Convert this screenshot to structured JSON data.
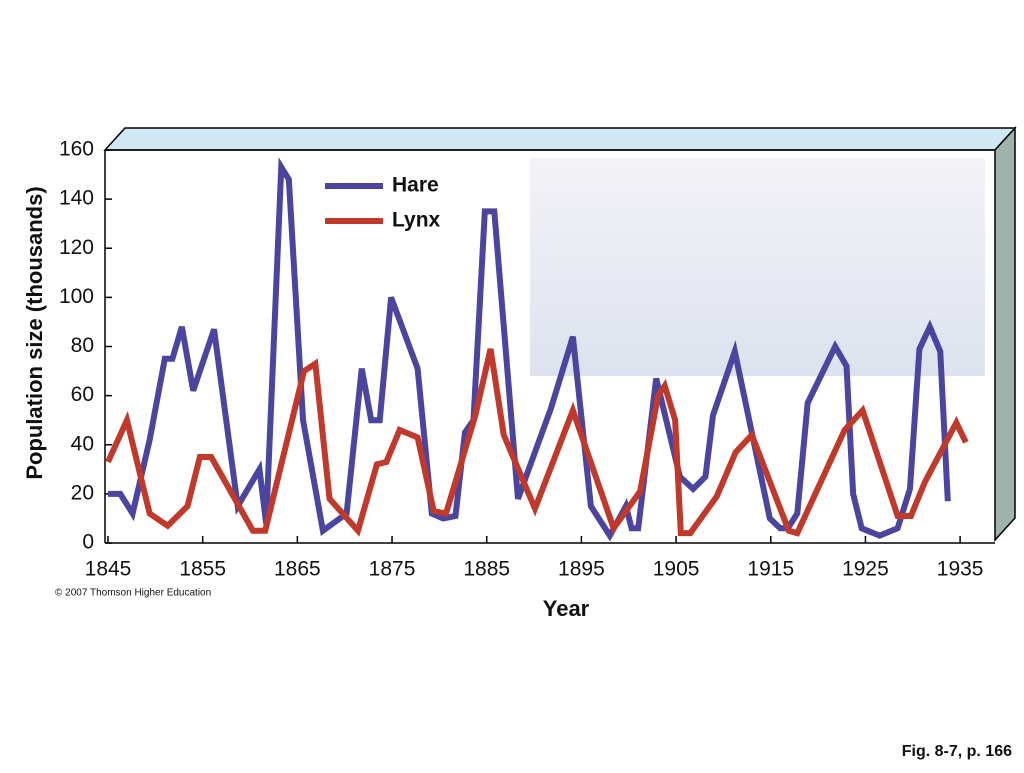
{
  "chart_data": {
    "type": "line",
    "x_label": "Year",
    "y_label": "Population size (thousands)",
    "footnote": "© 2007 Thomson Higher Education",
    "caption": "Fig. 8-7, p. 166",
    "xlim": [
      1845,
      1939
    ],
    "ylim": [
      0,
      160
    ],
    "xticks": [
      1845,
      1855,
      1865,
      1875,
      1885,
      1895,
      1905,
      1915,
      1925,
      1935
    ],
    "yticks": [
      0,
      20,
      40,
      60,
      80,
      100,
      120,
      140,
      160
    ],
    "legend": "upper-left",
    "series": [
      {
        "name": "Hare",
        "color": "#4b45a0",
        "x": [
          1845,
          1846.3,
          1847.6,
          1849.4,
          1851,
          1851.8,
          1852.8,
          1854,
          1856.2,
          1858.7,
          1861,
          1861.7,
          1863.3,
          1864.1,
          1865.6,
          1867.7,
          1870.2,
          1871.8,
          1872.8,
          1873.7,
          1874.9,
          1877.7,
          1879.2,
          1880.4,
          1881.7,
          1882.7,
          1883.6,
          1884.8,
          1885.8,
          1888.3,
          1891.8,
          1894.1,
          1896,
          1898,
          1899.7,
          1900.3,
          1901,
          1902.9,
          1905.4,
          1906.8,
          1908.1,
          1908.9,
          1911.2,
          1914.9,
          1916,
          1916.8,
          1917.8,
          1918.9,
          1921.8,
          1923,
          1923.7,
          1924.6,
          1926.5,
          1928.4,
          1929.7,
          1930.7,
          1931.8,
          1932.9,
          1933.7
        ],
        "values": [
          20,
          20,
          12,
          42,
          75,
          75,
          88,
          62,
          87,
          15,
          30,
          8,
          153,
          148,
          50,
          5,
          12,
          71,
          50,
          50,
          100,
          71,
          12,
          10,
          11,
          45,
          50,
          135,
          135,
          18,
          55,
          84,
          15,
          3,
          15,
          6,
          6,
          67,
          27,
          22,
          27,
          52,
          78,
          10,
          6,
          6,
          12,
          57,
          80,
          72,
          20,
          6,
          3,
          6,
          22,
          79,
          88,
          78,
          17
        ]
      },
      {
        "name": "Lynx",
        "color": "#c0392b",
        "x": [
          1845,
          1847,
          1849.4,
          1851.3,
          1853.4,
          1854.7,
          1855.9,
          1860.3,
          1861.6,
          1865.7,
          1866.9,
          1868.4,
          1871.4,
          1873.4,
          1874.4,
          1875.8,
          1877.7,
          1879.4,
          1880.7,
          1883.8,
          1885.4,
          1886.8,
          1890.1,
          1894.1,
          1898.4,
          1901.2,
          1903.1,
          1903.8,
          1904.9,
          1905.5,
          1906.5,
          1909.3,
          1911.3,
          1913,
          1916.9,
          1917.8,
          1922.8,
          1924.7,
          1928.4,
          1929.8,
          1931.3,
          1934.6,
          1935.6
        ],
        "values": [
          33,
          50,
          12,
          7,
          15,
          35,
          35,
          5,
          5,
          70,
          73,
          18,
          5,
          32,
          33,
          46,
          43,
          13,
          12,
          52,
          79,
          44,
          14,
          54,
          6,
          21,
          60,
          64,
          50,
          4,
          4,
          19,
          37,
          44,
          5,
          4,
          46,
          54,
          11,
          11,
          25,
          49,
          41
        ]
      }
    ]
  }
}
